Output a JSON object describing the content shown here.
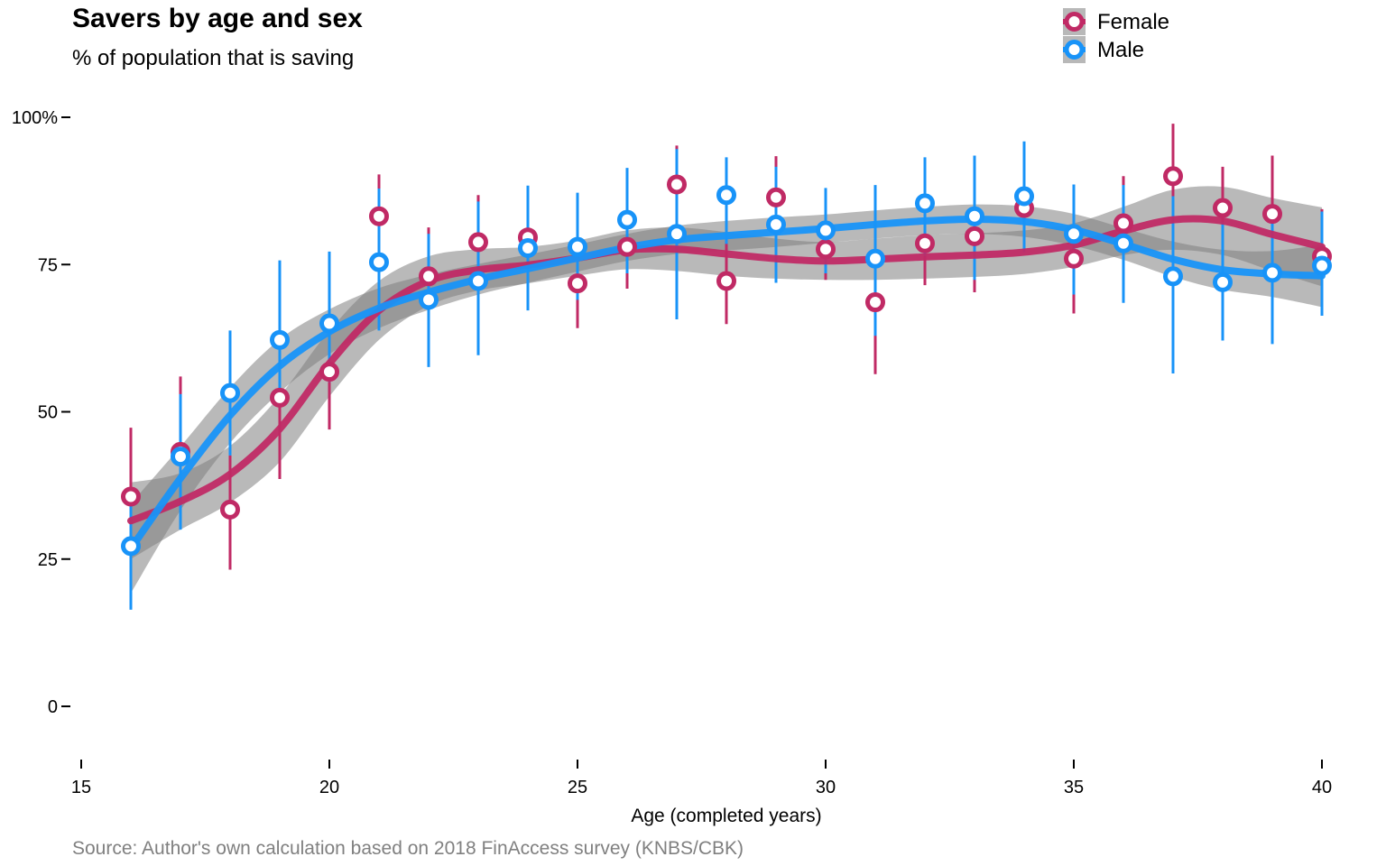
{
  "chart_data": {
    "type": "scatter",
    "title": "Savers by age and sex",
    "subtitle": "% of population that is saving",
    "caption": "Source: Author's own calculation based on 2018 FinAccess survey (KNBS/CBK)",
    "xlabel": "Age (completed years)",
    "ylabel": "",
    "xlim": [
      15,
      40
    ],
    "ylim": [
      0,
      100
    ],
    "x_ticks": [
      {
        "value": 15,
        "label": "15"
      },
      {
        "value": 20,
        "label": "20"
      },
      {
        "value": 25,
        "label": "25"
      },
      {
        "value": 30,
        "label": "30"
      },
      {
        "value": 35,
        "label": "35"
      },
      {
        "value": 40,
        "label": "40"
      }
    ],
    "y_ticks": [
      {
        "value": 0,
        "label": "0"
      },
      {
        "value": 25,
        "label": "25"
      },
      {
        "value": 50,
        "label": "50"
      },
      {
        "value": 75,
        "label": "75"
      },
      {
        "value": 100,
        "label": "100%"
      }
    ],
    "grid": false,
    "legend_position": "top-right",
    "smoother": "loess curve with grey confidence band",
    "series": [
      {
        "name": "Female",
        "color": "#C02A65",
        "x": [
          16,
          17,
          18,
          19,
          20,
          21,
          22,
          23,
          24,
          25,
          26,
          27,
          28,
          29,
          30,
          31,
          32,
          33,
          34,
          35,
          36,
          37,
          38,
          39,
          40
        ],
        "y": [
          35.6,
          43.2,
          33.4,
          52.4,
          56.8,
          83.2,
          73.0,
          78.8,
          79.6,
          71.8,
          78.0,
          88.6,
          72.2,
          86.4,
          77.6,
          68.6,
          78.6,
          79.8,
          84.6,
          76.0,
          82.0,
          90.0,
          84.6,
          83.6,
          76.4
        ],
        "lower": [
          23.5,
          30.2,
          23.2,
          38.6,
          47.0,
          72.9,
          64.8,
          70.6,
          71.9,
          64.2,
          70.9,
          80.9,
          64.9,
          78.7,
          72.4,
          56.4,
          71.5,
          70.3,
          77.2,
          66.7,
          73.9,
          80.5,
          76.5,
          74.6,
          68.0
        ],
        "upper": [
          47.3,
          56.0,
          42.6,
          65.0,
          65.4,
          90.3,
          81.3,
          86.8,
          87.2,
          79.3,
          84.1,
          95.2,
          79.4,
          93.4,
          82.8,
          78.5,
          85.7,
          88.4,
          92.2,
          84.4,
          90.0,
          98.9,
          91.6,
          93.5,
          84.4
        ],
        "smooth": [
          31.5,
          34.8,
          39.4,
          47.1,
          58.2,
          67.2,
          72.2,
          74.1,
          74.9,
          76.1,
          77.5,
          77.6,
          76.8,
          76.0,
          75.6,
          75.9,
          76.3,
          76.6,
          77.1,
          78.3,
          80.7,
          82.6,
          82.4,
          80.1,
          78.0
        ],
        "smooth_lower": [
          25.0,
          30.0,
          34.6,
          41.5,
          52.6,
          62.2,
          68.0,
          70.6,
          71.8,
          73.1,
          74.2,
          73.9,
          73.1,
          72.6,
          72.4,
          72.4,
          72.6,
          72.9,
          73.4,
          74.6,
          76.6,
          77.5,
          76.6,
          73.9,
          71.3
        ],
        "smooth_upper": [
          38.0,
          39.6,
          44.2,
          52.7,
          63.8,
          72.2,
          76.4,
          77.6,
          78.0,
          79.1,
          80.8,
          81.3,
          80.5,
          79.4,
          78.8,
          79.4,
          80.0,
          80.3,
          80.8,
          82.0,
          84.8,
          87.7,
          88.2,
          86.3,
          84.7
        ]
      },
      {
        "name": "Male",
        "color": "#1893F8",
        "x": [
          16,
          17,
          18,
          19,
          20,
          21,
          22,
          23,
          24,
          25,
          26,
          27,
          28,
          29,
          30,
          31,
          32,
          33,
          34,
          35,
          36,
          37,
          38,
          39,
          40
        ],
        "y": [
          27.2,
          42.4,
          53.2,
          62.2,
          65.0,
          75.4,
          69.0,
          72.2,
          77.8,
          78.0,
          82.6,
          80.2,
          86.8,
          81.8,
          80.8,
          76.0,
          85.4,
          83.2,
          86.6,
          80.2,
          78.6,
          73.0,
          72.0,
          73.6,
          74.8
        ],
        "lower": [
          16.4,
          30.0,
          42.6,
          50.9,
          55.1,
          63.8,
          57.6,
          59.6,
          67.2,
          69.0,
          73.5,
          65.7,
          78.5,
          71.9,
          73.5,
          62.9,
          76.4,
          72.4,
          77.1,
          69.9,
          68.5,
          56.5,
          62.1,
          61.5,
          66.3
        ],
        "upper": [
          34.0,
          53.0,
          63.8,
          75.7,
          77.2,
          87.9,
          80.2,
          85.7,
          88.4,
          87.2,
          91.4,
          94.6,
          93.2,
          91.6,
          88.0,
          88.5,
          93.2,
          93.5,
          95.9,
          88.6,
          88.5,
          86.6,
          82.3,
          84.0,
          84.0
        ],
        "smooth": [
          26.8,
          38.7,
          49.4,
          57.8,
          63.6,
          67.6,
          70.3,
          72.5,
          74.3,
          76.1,
          77.9,
          79.2,
          79.9,
          80.5,
          81.1,
          81.8,
          82.4,
          82.7,
          82.3,
          80.9,
          78.5,
          75.9,
          74.1,
          73.4,
          73.1
        ],
        "smooth_lower": [
          19.2,
          33.3,
          44.7,
          53.3,
          59.8,
          64.2,
          67.3,
          69.9,
          71.9,
          73.8,
          75.6,
          76.8,
          77.4,
          78.0,
          78.7,
          79.4,
          80.0,
          80.2,
          79.7,
          78.2,
          75.8,
          72.9,
          70.7,
          69.5,
          67.8
        ],
        "smooth_upper": [
          34.4,
          44.1,
          54.1,
          62.3,
          67.4,
          71.0,
          73.3,
          75.1,
          76.7,
          78.4,
          80.2,
          81.6,
          82.4,
          83.0,
          83.5,
          84.2,
          84.8,
          85.2,
          84.9,
          83.6,
          81.2,
          78.9,
          77.5,
          77.3,
          78.4
        ]
      }
    ]
  }
}
